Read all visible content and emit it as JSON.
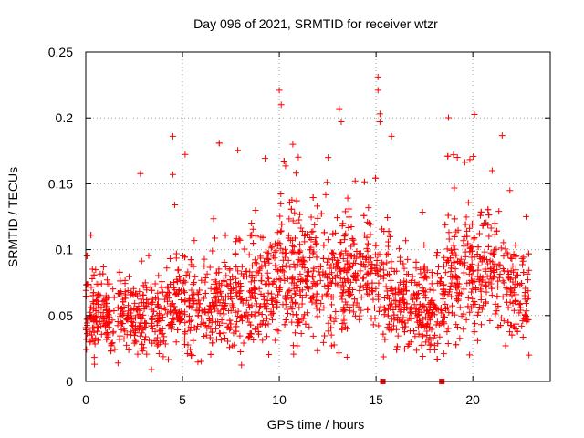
{
  "chart_data": {
    "type": "scatter",
    "title": "Day 096 of 2021, SRMTID for receiver wtzr",
    "xlabel": "GPS time / hours",
    "ylabel": "SRMTID / TECUs",
    "xlim": [
      0,
      24
    ],
    "ylim": [
      0,
      0.25
    ],
    "xticks": [
      0,
      5,
      10,
      15,
      20
    ],
    "xtick_labels": [
      "0",
      "5",
      "10",
      "15",
      "20"
    ],
    "yticks": [
      0,
      0.05,
      0.1,
      0.15,
      0.2,
      0.25
    ],
    "ytick_labels": [
      "0",
      "0.05",
      "0.1",
      "0.15",
      "0.2",
      "0.25"
    ],
    "grid": true,
    "marker": "+",
    "color": "#ff0000",
    "notable_points": [
      {
        "x": 3.4,
        "y": 0.009
      },
      {
        "x": 4.5,
        "y": 0.186
      },
      {
        "x": 4.5,
        "y": 0.157
      },
      {
        "x": 4.6,
        "y": 0.134
      },
      {
        "x": 10.0,
        "y": 0.221
      },
      {
        "x": 10.1,
        "y": 0.21
      },
      {
        "x": 10.7,
        "y": 0.18
      },
      {
        "x": 13.1,
        "y": 0.207
      },
      {
        "x": 13.2,
        "y": 0.197
      },
      {
        "x": 15.1,
        "y": 0.231
      },
      {
        "x": 15.1,
        "y": 0.221
      },
      {
        "x": 15.2,
        "y": 0.203
      },
      {
        "x": 15.2,
        "y": 0.197
      },
      {
        "x": 15.8,
        "y": 0.186
      },
      {
        "x": 18.5,
        "y": 0.021
      },
      {
        "x": 19.0,
        "y": 0.172
      },
      {
        "x": 19.2,
        "y": 0.17
      },
      {
        "x": 21.0,
        "y": 0.16
      },
      {
        "x": 22.9,
        "y": 0.02
      }
    ],
    "density_envelope": {
      "hours": [
        0,
        1,
        2,
        3,
        4,
        5,
        6,
        7,
        8,
        9,
        10,
        11,
        12,
        13,
        14,
        15,
        16,
        17,
        18,
        19,
        20,
        21,
        22,
        23
      ],
      "median": [
        0.055,
        0.052,
        0.05,
        0.05,
        0.055,
        0.06,
        0.055,
        0.06,
        0.065,
        0.07,
        0.08,
        0.08,
        0.075,
        0.078,
        0.085,
        0.085,
        0.065,
        0.06,
        0.055,
        0.075,
        0.08,
        0.085,
        0.07,
        0.06
      ],
      "spread": [
        0.02,
        0.02,
        0.02,
        0.02,
        0.022,
        0.025,
        0.025,
        0.025,
        0.028,
        0.03,
        0.035,
        0.035,
        0.03,
        0.035,
        0.03,
        0.03,
        0.025,
        0.022,
        0.022,
        0.03,
        0.03,
        0.03,
        0.025,
        0.022
      ]
    },
    "x_axis_markers": [
      15.35,
      18.4
    ]
  }
}
